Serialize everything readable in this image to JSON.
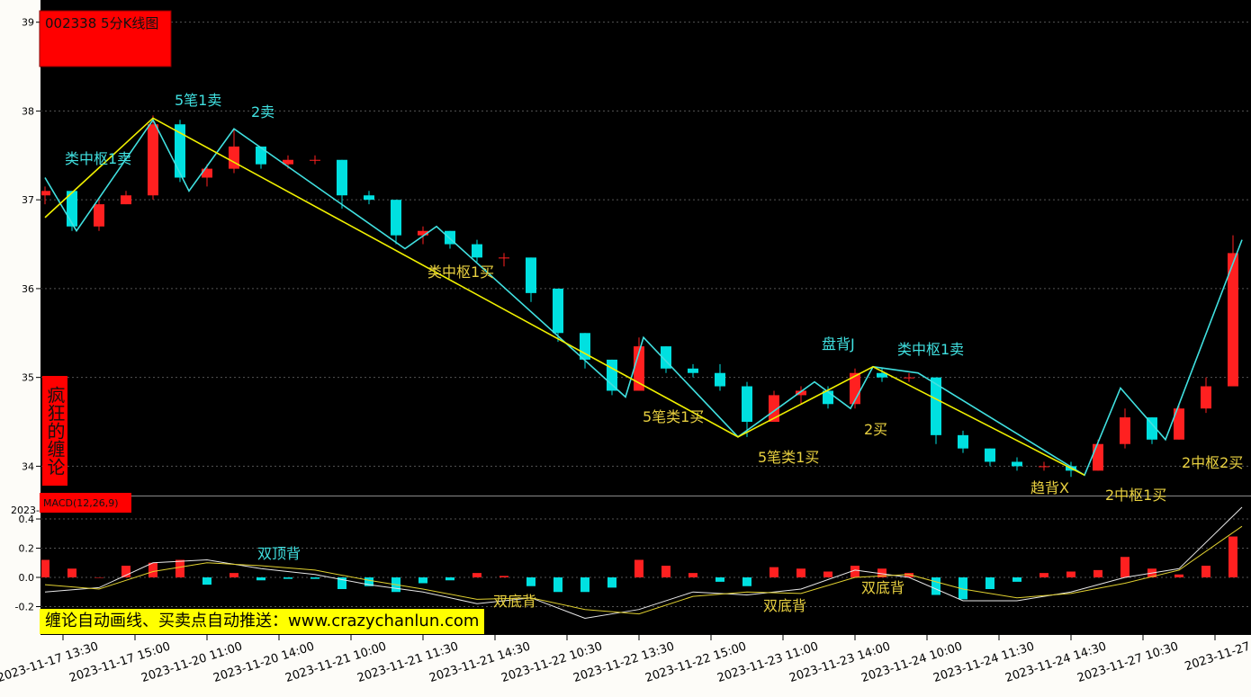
{
  "title": "002338 5分K线图",
  "side_label": "疯狂的缠论",
  "macd_label": "MACD(12,26,9)",
  "axis_fragment": "2023-",
  "banner": "缠论自动画线、买卖点自动推送：www.crazychanlun.com",
  "chart_data": [
    {
      "type": "candlestick",
      "xlim": [
        0,
        134
      ],
      "ylim": [
        33.68,
        39.25
      ],
      "yticks": [
        34,
        35,
        36,
        37,
        38,
        39
      ],
      "grid": true,
      "up_color": "#ff2020",
      "down_color": "#00e0e0",
      "xticks": [
        {
          "value": 2,
          "label": "2023-11-17 13:30"
        },
        {
          "value": 10,
          "label": "2023-11-17 15:00"
        },
        {
          "value": 18,
          "label": "2023-11-20 11:00"
        },
        {
          "value": 26,
          "label": "2023-11-20 14:00"
        },
        {
          "value": 34,
          "label": "2023-11-21 10:00"
        },
        {
          "value": 42,
          "label": "2023-11-21 11:30"
        },
        {
          "value": 50,
          "label": "2023-11-21 14:30"
        },
        {
          "value": 58,
          "label": "2023-11-22 10:30"
        },
        {
          "value": 66,
          "label": "2023-11-22 13:30"
        },
        {
          "value": 74,
          "label": "2023-11-22 15:00"
        },
        {
          "value": 82,
          "label": "2023-11-23 11:00"
        },
        {
          "value": 90,
          "label": "2023-11-23 14:00"
        },
        {
          "value": 98,
          "label": "2023-11-24 10:00"
        },
        {
          "value": 106,
          "label": "2023-11-24 11:30"
        },
        {
          "value": 114,
          "label": "2023-11-24 14:30"
        },
        {
          "value": 122,
          "label": "2023-11-27 10:30"
        },
        {
          "value": 130,
          "label": "2023-11-27"
        }
      ],
      "x": [
        0,
        3,
        6,
        9,
        12,
        15,
        18,
        21,
        24,
        27,
        30,
        33,
        36,
        39,
        42,
        45,
        48,
        51,
        54,
        57,
        60,
        63,
        66,
        69,
        72,
        75,
        78,
        81,
        84,
        87,
        90,
        93,
        96,
        99,
        102,
        105,
        108,
        111,
        114,
        117,
        120,
        123,
        126,
        129,
        132
      ],
      "ohlc": [
        [
          37.05,
          37.15,
          36.95,
          37.1
        ],
        [
          37.1,
          37.1,
          36.65,
          36.7
        ],
        [
          36.7,
          37.0,
          36.65,
          36.95
        ],
        [
          36.95,
          37.1,
          36.95,
          37.05
        ],
        [
          37.05,
          37.95,
          37.0,
          37.85
        ],
        [
          37.85,
          37.9,
          37.2,
          37.25
        ],
        [
          37.25,
          37.4,
          37.15,
          37.35
        ],
        [
          37.35,
          37.8,
          37.3,
          37.6
        ],
        [
          37.6,
          37.6,
          37.35,
          37.4
        ],
        [
          37.4,
          37.5,
          37.35,
          37.45
        ],
        [
          37.45,
          37.5,
          37.4,
          37.45
        ],
        [
          37.45,
          37.45,
          36.9,
          37.05
        ],
        [
          37.05,
          37.1,
          36.95,
          37.0
        ],
        [
          37.0,
          37.0,
          36.5,
          36.6
        ],
        [
          36.6,
          36.7,
          36.5,
          36.65
        ],
        [
          36.65,
          36.65,
          36.45,
          36.5
        ],
        [
          36.5,
          36.55,
          36.3,
          36.35
        ],
        [
          36.35,
          36.4,
          36.25,
          36.35
        ],
        [
          36.35,
          36.35,
          35.85,
          35.95
        ],
        [
          36.0,
          36.0,
          35.4,
          35.5
        ],
        [
          35.5,
          35.5,
          35.1,
          35.2
        ],
        [
          35.2,
          35.2,
          34.8,
          34.85
        ],
        [
          34.85,
          35.45,
          34.85,
          35.35
        ],
        [
          35.35,
          35.35,
          35.05,
          35.1
        ],
        [
          35.1,
          35.15,
          35.0,
          35.05
        ],
        [
          35.05,
          35.15,
          34.85,
          34.9
        ],
        [
          34.9,
          34.95,
          34.33,
          34.5
        ],
        [
          34.5,
          34.85,
          34.5,
          34.8
        ],
        [
          34.8,
          34.9,
          34.7,
          34.85
        ],
        [
          34.85,
          34.9,
          34.65,
          34.7
        ],
        [
          34.7,
          35.1,
          34.65,
          35.05
        ],
        [
          35.05,
          35.1,
          34.95,
          35.0
        ],
        [
          35.0,
          35.05,
          34.95,
          35.0
        ],
        [
          35.0,
          35.0,
          34.25,
          34.35
        ],
        [
          34.35,
          34.4,
          34.15,
          34.2
        ],
        [
          34.2,
          34.2,
          34.0,
          34.05
        ],
        [
          34.05,
          34.1,
          33.95,
          34.0
        ],
        [
          34.0,
          34.05,
          33.95,
          34.0
        ],
        [
          34.0,
          34.05,
          33.88,
          33.95
        ],
        [
          33.95,
          34.3,
          33.95,
          34.25
        ],
        [
          34.25,
          34.65,
          34.2,
          34.55
        ],
        [
          34.55,
          34.55,
          34.25,
          34.3
        ],
        [
          34.3,
          34.7,
          34.3,
          34.65
        ],
        [
          34.65,
          35.0,
          34.6,
          34.9
        ],
        [
          34.9,
          36.6,
          34.9,
          36.4
        ]
      ],
      "strokes": [
        {
          "color": "#40e0e0",
          "x": [
            0,
            3.5,
            12,
            16,
            21,
            40,
            43.5,
            64.5,
            66.5,
            77,
            85.5,
            89.5,
            92,
            97,
            115.5,
            119.5,
            124.5,
            133
          ],
          "values": [
            37.25,
            36.65,
            37.9,
            37.1,
            37.8,
            36.45,
            36.7,
            34.78,
            35.45,
            34.33,
            34.95,
            34.65,
            35.12,
            35.05,
            33.9,
            34.88,
            34.3,
            36.55
          ]
        },
        {
          "color": "#f0f000",
          "x": [
            0,
            12,
            77,
            92,
            115.5
          ],
          "values": [
            36.8,
            37.92,
            34.33,
            35.12,
            33.9
          ]
        }
      ],
      "annotations": [
        {
          "text": "5笔1卖",
          "color": "#40e0e0"
        },
        {
          "text": "2卖",
          "color": "#40e0e0"
        },
        {
          "text": "类中枢1卖",
          "color": "#40e0e0"
        },
        {
          "text": "类中枢1买",
          "color": "#e8d040"
        },
        {
          "text": "5笔类1买",
          "color": "#e8d040"
        },
        {
          "text": "5笔类1买",
          "color": "#e8d040"
        },
        {
          "text": "盘背J",
          "color": "#40e0e0"
        },
        {
          "text": "类中枢1卖",
          "color": "#40e0e0"
        },
        {
          "text": "2买",
          "color": "#e8d040"
        },
        {
          "text": "趋背X",
          "color": "#e8d040"
        },
        {
          "text": "2中枢1买",
          "color": "#e8d040"
        },
        {
          "text": "2中枢2买",
          "color": "#e8d040"
        }
      ]
    },
    {
      "type": "bar",
      "xlim": [
        0,
        134
      ],
      "ylim": [
        -0.394,
        0.548
      ],
      "yticks": [
        -0.2,
        {
          "value": 0,
          "label": "0.0"
        },
        0.2,
        0.4
      ],
      "grid": true,
      "up_color": "#ff2020",
      "down_color": "#00e0e0",
      "x": [
        0,
        3,
        6,
        9,
        12,
        15,
        18,
        21,
        24,
        27,
        30,
        33,
        36,
        39,
        42,
        45,
        48,
        51,
        54,
        57,
        60,
        63,
        66,
        69,
        72,
        75,
        78,
        81,
        84,
        87,
        90,
        93,
        96,
        99,
        102,
        105,
        108,
        111,
        114,
        117,
        120,
        123,
        126,
        129,
        132
      ],
      "values": [
        0.12,
        0.06,
        0.0,
        0.08,
        0.1,
        0.12,
        -0.05,
        0.03,
        -0.02,
        -0.01,
        -0.01,
        -0.08,
        -0.06,
        -0.1,
        -0.04,
        -0.02,
        0.03,
        0.01,
        -0.06,
        -0.1,
        -0.1,
        -0.07,
        0.12,
        0.08,
        0.03,
        -0.03,
        -0.06,
        0.07,
        0.06,
        0.04,
        0.08,
        0.06,
        0.03,
        -0.12,
        -0.15,
        -0.08,
        -0.03,
        0.03,
        0.04,
        0.05,
        0.14,
        0.06,
        0.02,
        0.08,
        0.28
      ],
      "lines": [
        {
          "color": "#e8e8e8",
          "x": [
            0,
            6,
            12,
            18,
            24,
            30,
            36,
            42,
            48,
            54,
            60,
            66,
            72,
            78,
            84,
            90,
            96,
            102,
            108,
            114,
            120,
            126,
            133
          ],
          "values": [
            -0.1,
            -0.07,
            0.1,
            0.12,
            0.06,
            0.02,
            -0.05,
            -0.1,
            -0.18,
            -0.14,
            -0.28,
            -0.22,
            -0.1,
            -0.12,
            -0.08,
            0.05,
            0.0,
            -0.16,
            -0.16,
            -0.1,
            0.0,
            0.06,
            0.48
          ]
        },
        {
          "color": "#e0d030",
          "x": [
            0,
            6,
            12,
            18,
            24,
            30,
            36,
            42,
            48,
            54,
            60,
            66,
            72,
            78,
            84,
            90,
            96,
            102,
            108,
            114,
            120,
            126,
            133
          ],
          "values": [
            -0.05,
            -0.08,
            0.04,
            0.1,
            0.08,
            0.05,
            -0.02,
            -0.08,
            -0.15,
            -0.14,
            -0.22,
            -0.25,
            -0.13,
            -0.1,
            -0.11,
            0.0,
            0.02,
            -0.08,
            -0.14,
            -0.11,
            -0.04,
            0.05,
            0.35
          ]
        }
      ],
      "annotations": [
        {
          "text": "双顶背",
          "color": "#40e0e0"
        },
        {
          "text": "双底背",
          "color": "#e8d040"
        },
        {
          "text": "双底背",
          "color": "#e8d040"
        },
        {
          "text": "双底背",
          "color": "#e8d040"
        }
      ]
    }
  ]
}
